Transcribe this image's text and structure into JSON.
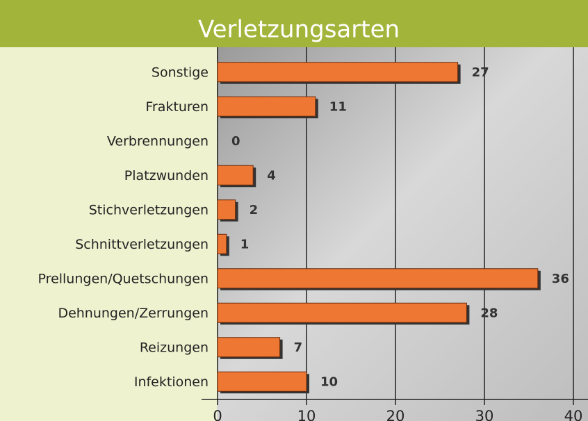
{
  "chart_data": {
    "type": "bar",
    "orientation": "horizontal",
    "title": "Verletzungsarten",
    "categories": [
      "Sonstige",
      "Frakturen",
      "Verbrennungen",
      "Platzwunden",
      "Stichverletzungen",
      "Schnittverletzungen",
      "Prellungen/Quetschungen",
      "Dehnungen/Zerrungen",
      "Reizungen",
      "Infektionen"
    ],
    "values": [
      27,
      11,
      0,
      4,
      2,
      1,
      36,
      28,
      7,
      10
    ],
    "color": "#ee7733",
    "xlim": [
      0,
      40
    ],
    "xticks": [
      0,
      10,
      20,
      30,
      40
    ],
    "grid": true
  }
}
